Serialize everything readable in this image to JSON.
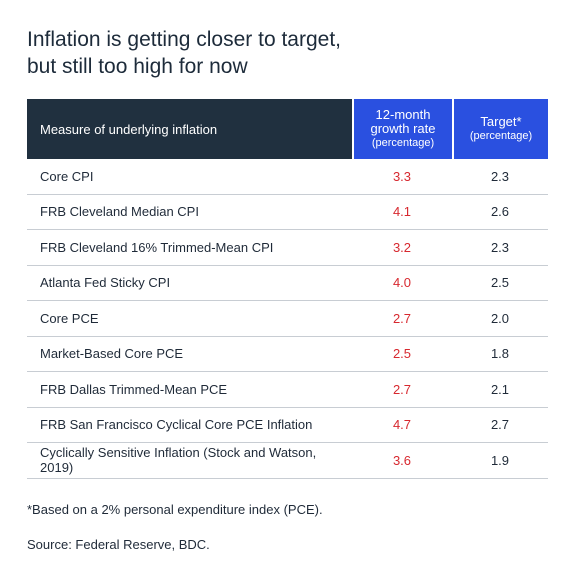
{
  "title_line1": "Inflation is getting closer to target,",
  "title_line2": "but still too high for now",
  "chart_data": {
    "type": "table",
    "columns": {
      "measure": "Measure of underlying inflation",
      "growth_line1": "12-month",
      "growth_line2": "growth rate",
      "growth_unit": "(percentage)",
      "target_line1": "Target*",
      "target_unit": "(percentage)"
    },
    "rows": [
      {
        "measure": "Core CPI",
        "growth": "3.3",
        "target": "2.3"
      },
      {
        "measure": "FRB Cleveland Median CPI",
        "growth": "4.1",
        "target": "2.6"
      },
      {
        "measure": "FRB Cleveland 16% Trimmed-Mean CPI",
        "growth": "3.2",
        "target": "2.3"
      },
      {
        "measure": "Atlanta Fed Sticky CPI",
        "growth": "4.0",
        "target": "2.5"
      },
      {
        "measure": "Core PCE",
        "growth": "2.7",
        "target": "2.0"
      },
      {
        "measure": "Market-Based Core PCE",
        "growth": "2.5",
        "target": "1.8"
      },
      {
        "measure": "FRB Dallas Trimmed-Mean PCE",
        "growth": "2.7",
        "target": "2.1"
      },
      {
        "measure": "FRB San Francisco Cyclical Core PCE Inflation",
        "growth": "4.7",
        "target": "2.7"
      },
      {
        "measure": "Cyclically Sensitive Inflation (Stock and Watson, 2019)",
        "growth": "3.6",
        "target": "1.9"
      }
    ]
  },
  "footnote": "*Based on a 2% personal expenditure index (PCE).",
  "source": "Source: Federal Reserve, BDC.",
  "colors": {
    "header_dark": "#20303f",
    "header_blue": "#2a50e0",
    "growth_text": "#d7282f"
  }
}
